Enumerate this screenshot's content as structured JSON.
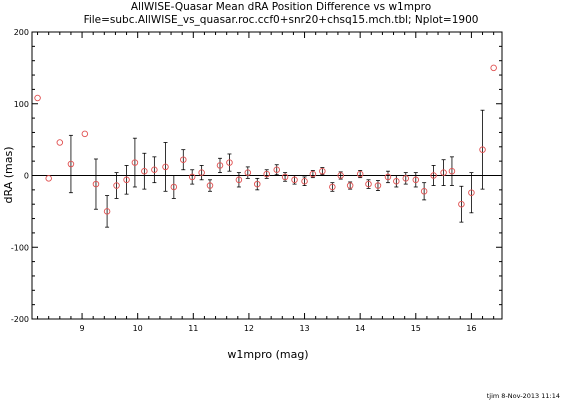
{
  "chart_data": {
    "type": "scatter",
    "title": "AllWISE-Quasar Mean dRA Position Difference vs w1mpro",
    "subtitle": "File=subc.AllWISE_vs_quasar.roc.ccf0+snr20+chsq15.mch.tbl; Nplot=1900",
    "xlabel": "w1mpro (mag)",
    "ylabel": "dRA (mas)",
    "xlim": [
      8.1,
      16.55
    ],
    "ylim": [
      -200,
      200
    ],
    "xticks": [
      9,
      10,
      11,
      12,
      13,
      14,
      15,
      16
    ],
    "yticks": [
      -200,
      -100,
      0,
      100,
      200
    ],
    "zero_line": true,
    "footer": "tjim  8-Nov-2013 11:14",
    "colors": {
      "points": "#e05050",
      "errorbars": "#000000",
      "axes": "#000000"
    },
    "series": [
      {
        "points": [
          {
            "x": 8.2,
            "y": 108,
            "err": 0
          },
          {
            "x": 8.4,
            "y": -4,
            "err": 0
          },
          {
            "x": 8.6,
            "y": 46,
            "err": 0
          },
          {
            "x": 8.8,
            "y": 16,
            "err": 40
          },
          {
            "x": 9.05,
            "y": 58,
            "err": 0
          },
          {
            "x": 9.25,
            "y": -12,
            "err": 35
          },
          {
            "x": 9.45,
            "y": -50,
            "err": 22
          },
          {
            "x": 9.62,
            "y": -14,
            "err": 18
          },
          {
            "x": 9.8,
            "y": -6,
            "err": 20
          },
          {
            "x": 9.95,
            "y": 18,
            "err": 34
          },
          {
            "x": 10.12,
            "y": 6,
            "err": 25
          },
          {
            "x": 10.3,
            "y": 8,
            "err": 18
          },
          {
            "x": 10.5,
            "y": 12,
            "err": 34
          },
          {
            "x": 10.65,
            "y": -16,
            "err": 16
          },
          {
            "x": 10.82,
            "y": 22,
            "err": 14
          },
          {
            "x": 10.98,
            "y": -2,
            "err": 10
          },
          {
            "x": 11.15,
            "y": 4,
            "err": 10
          },
          {
            "x": 11.3,
            "y": -14,
            "err": 8
          },
          {
            "x": 11.48,
            "y": 14,
            "err": 10
          },
          {
            "x": 11.65,
            "y": 18,
            "err": 12
          },
          {
            "x": 11.82,
            "y": -6,
            "err": 10
          },
          {
            "x": 11.98,
            "y": 4,
            "err": 8
          },
          {
            "x": 12.15,
            "y": -12,
            "err": 8
          },
          {
            "x": 12.32,
            "y": 2,
            "err": 6
          },
          {
            "x": 12.5,
            "y": 8,
            "err": 7
          },
          {
            "x": 12.65,
            "y": -2,
            "err": 6
          },
          {
            "x": 12.82,
            "y": -6,
            "err": 6
          },
          {
            "x": 13.0,
            "y": -8,
            "err": 6
          },
          {
            "x": 13.15,
            "y": 2,
            "err": 5
          },
          {
            "x": 13.32,
            "y": 6,
            "err": 5
          },
          {
            "x": 13.5,
            "y": -16,
            "err": 6
          },
          {
            "x": 13.65,
            "y": 0,
            "err": 5
          },
          {
            "x": 13.82,
            "y": -14,
            "err": 5
          },
          {
            "x": 14.0,
            "y": 2,
            "err": 5
          },
          {
            "x": 14.15,
            "y": -12,
            "err": 6
          },
          {
            "x": 14.32,
            "y": -14,
            "err": 7
          },
          {
            "x": 14.5,
            "y": -2,
            "err": 8
          },
          {
            "x": 14.65,
            "y": -8,
            "err": 8
          },
          {
            "x": 14.82,
            "y": -4,
            "err": 8
          },
          {
            "x": 15.0,
            "y": -6,
            "err": 10
          },
          {
            "x": 15.15,
            "y": -22,
            "err": 12
          },
          {
            "x": 15.32,
            "y": 0,
            "err": 14
          },
          {
            "x": 15.5,
            "y": 4,
            "err": 18
          },
          {
            "x": 15.65,
            "y": 6,
            "err": 20
          },
          {
            "x": 15.82,
            "y": -40,
            "err": 25
          },
          {
            "x": 16.0,
            "y": -24,
            "err": 28
          },
          {
            "x": 16.2,
            "y": 36,
            "err": 55
          },
          {
            "x": 16.4,
            "y": 150,
            "err": 0
          }
        ]
      }
    ]
  }
}
